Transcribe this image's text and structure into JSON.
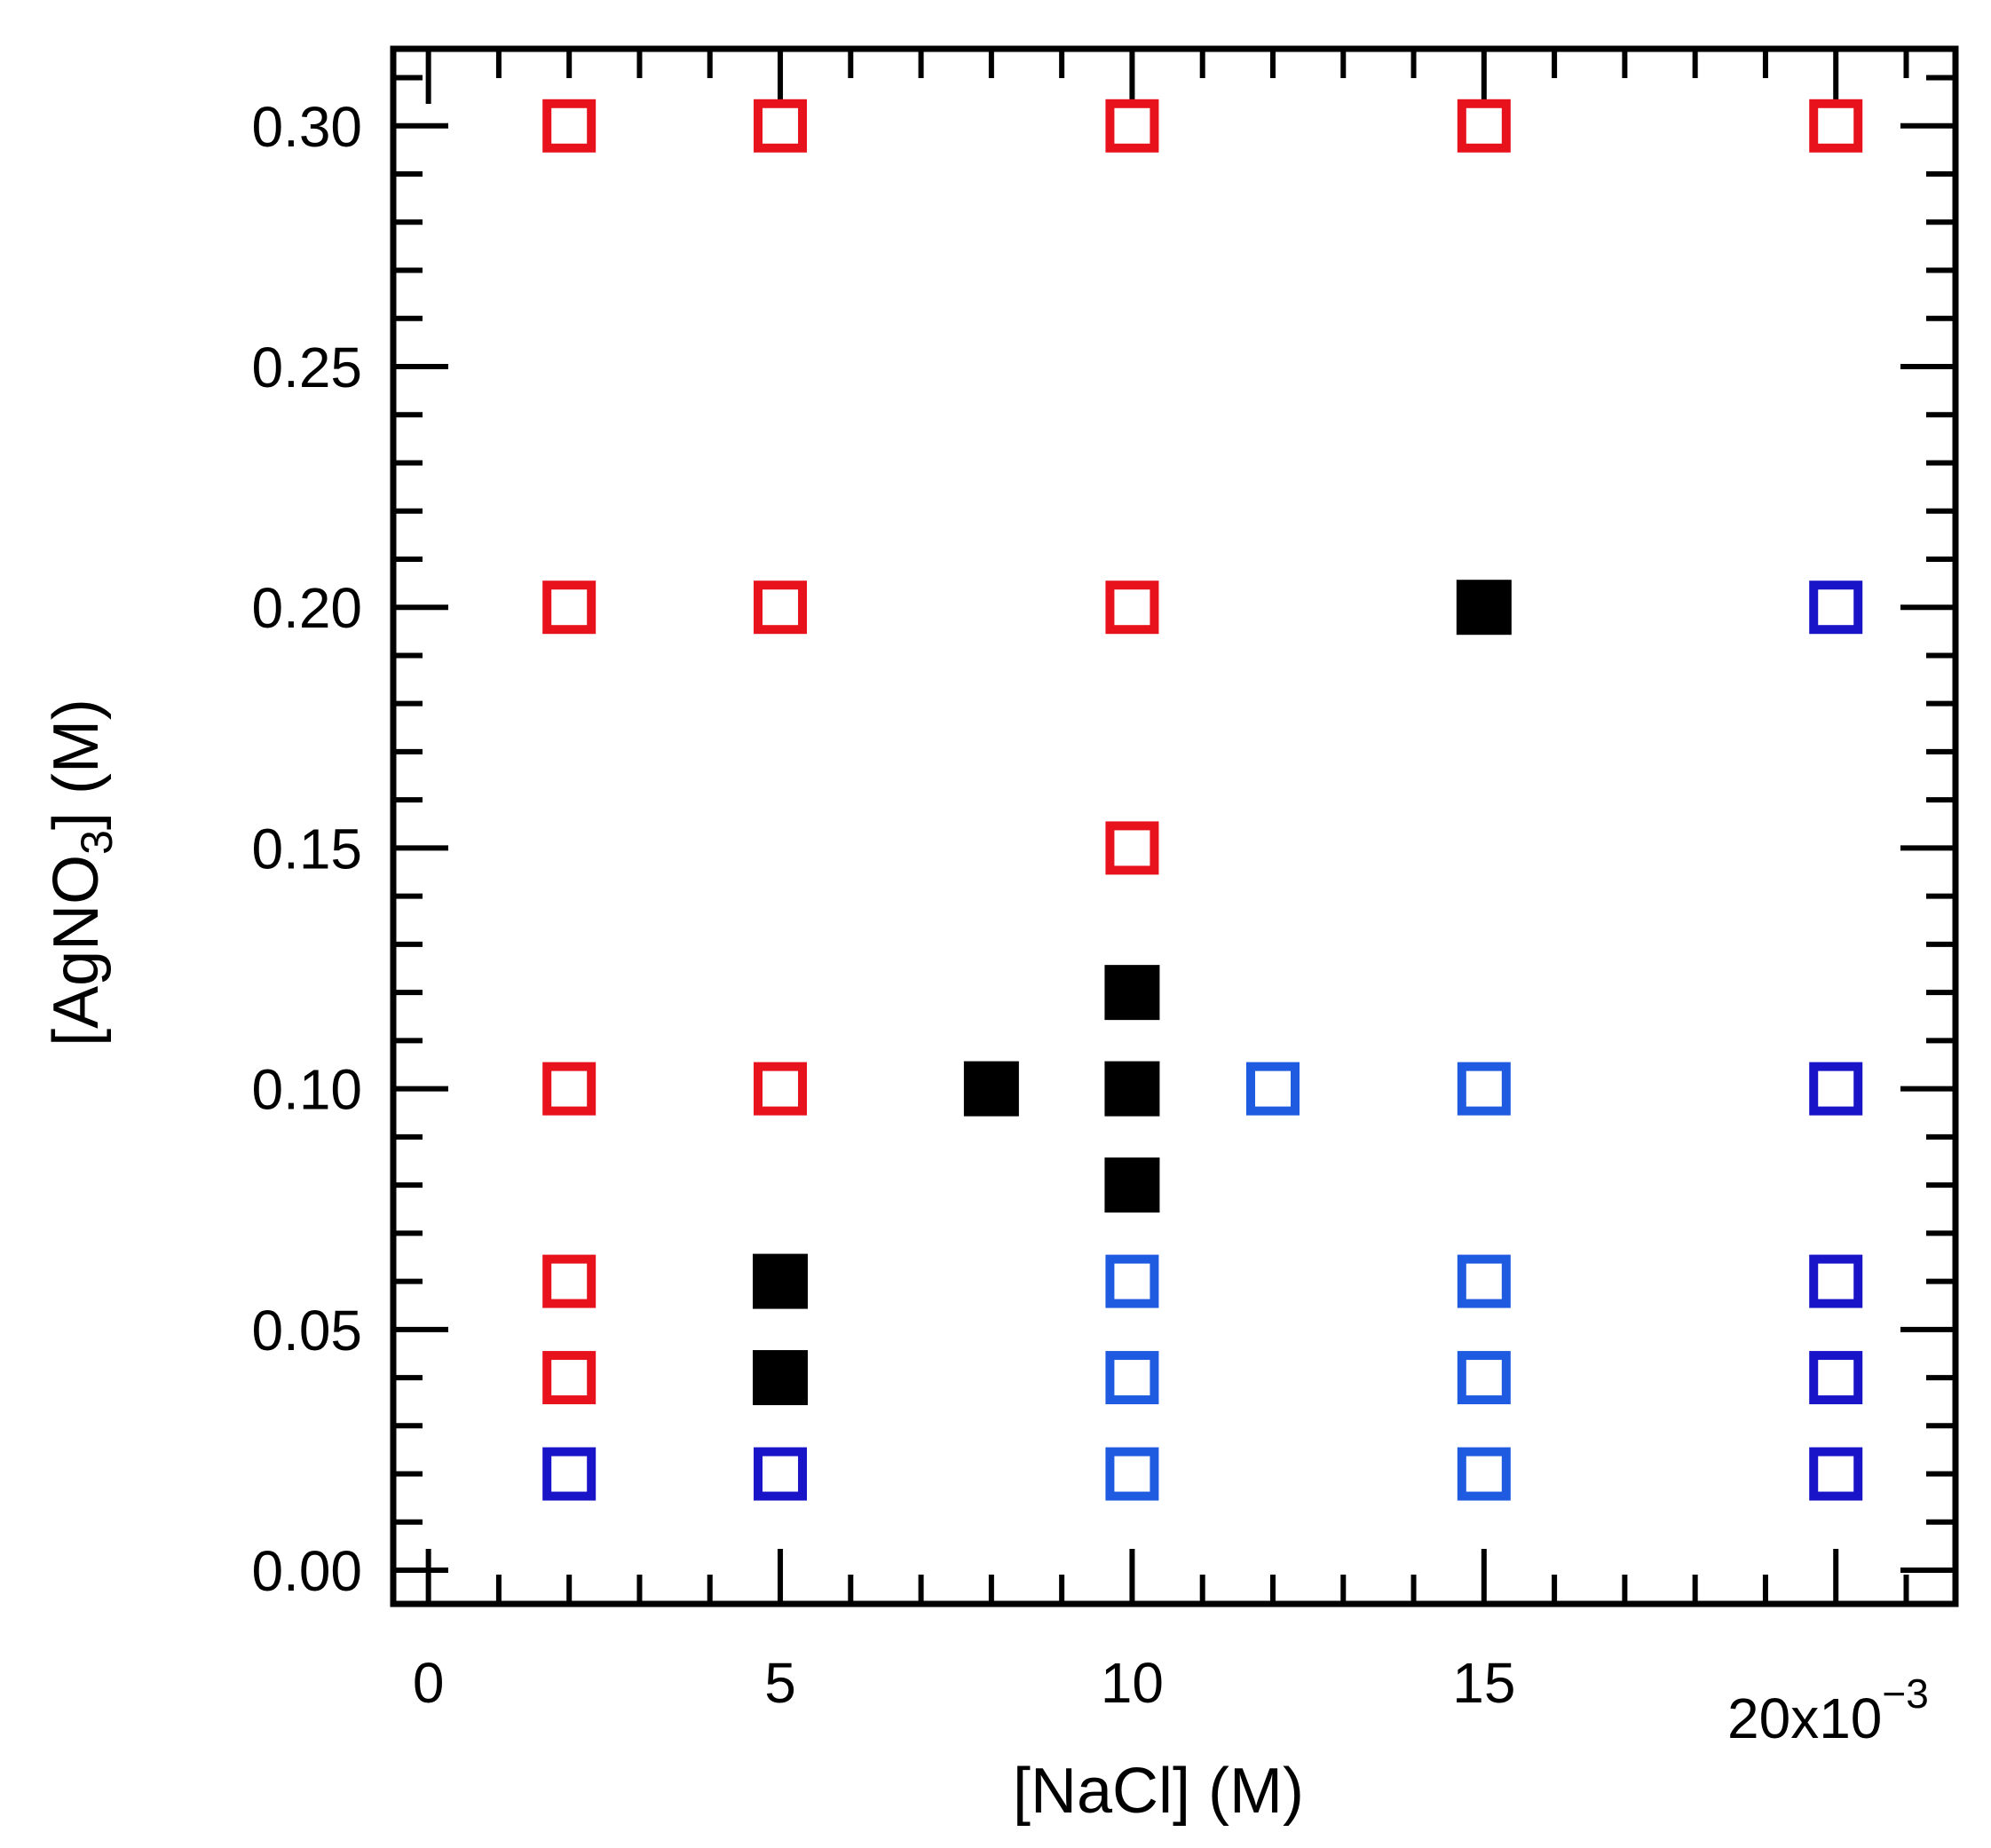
{
  "chart_data": {
    "type": "scatter",
    "title": "",
    "xlabel": "[NaCl] (M)",
    "ylabel_parts": {
      "main": "[AgNO",
      "sub": "3",
      "tail": "] (M)"
    },
    "x_multiplier": {
      "base": "20x10",
      "exponent": "−3"
    },
    "xlim": [
      -0.0005,
      0.0217
    ],
    "ylim": [
      -0.007,
      0.316
    ],
    "x_ticks": [
      {
        "value": 0,
        "label": "0"
      },
      {
        "value": 0.005,
        "label": "5"
      },
      {
        "value": 0.01,
        "label": "10"
      },
      {
        "value": 0.015,
        "label": "15"
      }
    ],
    "y_ticks": [
      {
        "value": 0.0,
        "label": "0.00"
      },
      {
        "value": 0.05,
        "label": "0.05"
      },
      {
        "value": 0.1,
        "label": "0.10"
      },
      {
        "value": 0.15,
        "label": "0.15"
      },
      {
        "value": 0.2,
        "label": "0.20"
      },
      {
        "value": 0.25,
        "label": "0.25"
      },
      {
        "value": 0.3,
        "label": "0.30"
      }
    ],
    "x_minor_step": 0.001,
    "y_minor_step": 0.01,
    "series": [
      {
        "name": "red-open",
        "marker": "open-square",
        "color": "#e8121c",
        "points": [
          [
            0.002,
            0.3
          ],
          [
            0.005,
            0.3
          ],
          [
            0.01,
            0.3
          ],
          [
            0.015,
            0.3
          ],
          [
            0.02,
            0.3
          ],
          [
            0.002,
            0.2
          ],
          [
            0.005,
            0.2
          ],
          [
            0.01,
            0.2
          ],
          [
            0.01,
            0.15
          ],
          [
            0.002,
            0.1
          ],
          [
            0.005,
            0.1
          ],
          [
            0.002,
            0.06
          ],
          [
            0.002,
            0.04
          ]
        ]
      },
      {
        "name": "black-filled",
        "marker": "filled-square",
        "color": "#000000",
        "points": [
          [
            0.015,
            0.2
          ],
          [
            0.01,
            0.12
          ],
          [
            0.008,
            0.1
          ],
          [
            0.01,
            0.1
          ],
          [
            0.01,
            0.08
          ],
          [
            0.005,
            0.06
          ],
          [
            0.005,
            0.04
          ]
        ]
      },
      {
        "name": "light-blue-open",
        "marker": "open-square",
        "color": "#1f5be0",
        "points": [
          [
            0.012,
            0.1
          ],
          [
            0.015,
            0.1
          ],
          [
            0.01,
            0.06
          ],
          [
            0.015,
            0.06
          ],
          [
            0.01,
            0.04
          ],
          [
            0.015,
            0.04
          ],
          [
            0.01,
            0.02
          ],
          [
            0.015,
            0.02
          ]
        ]
      },
      {
        "name": "dark-blue-open",
        "marker": "open-square",
        "color": "#1a14c8",
        "points": [
          [
            0.02,
            0.2
          ],
          [
            0.02,
            0.1
          ],
          [
            0.02,
            0.06
          ],
          [
            0.02,
            0.04
          ],
          [
            0.02,
            0.02
          ],
          [
            0.002,
            0.02
          ],
          [
            0.005,
            0.02
          ]
        ]
      }
    ]
  }
}
